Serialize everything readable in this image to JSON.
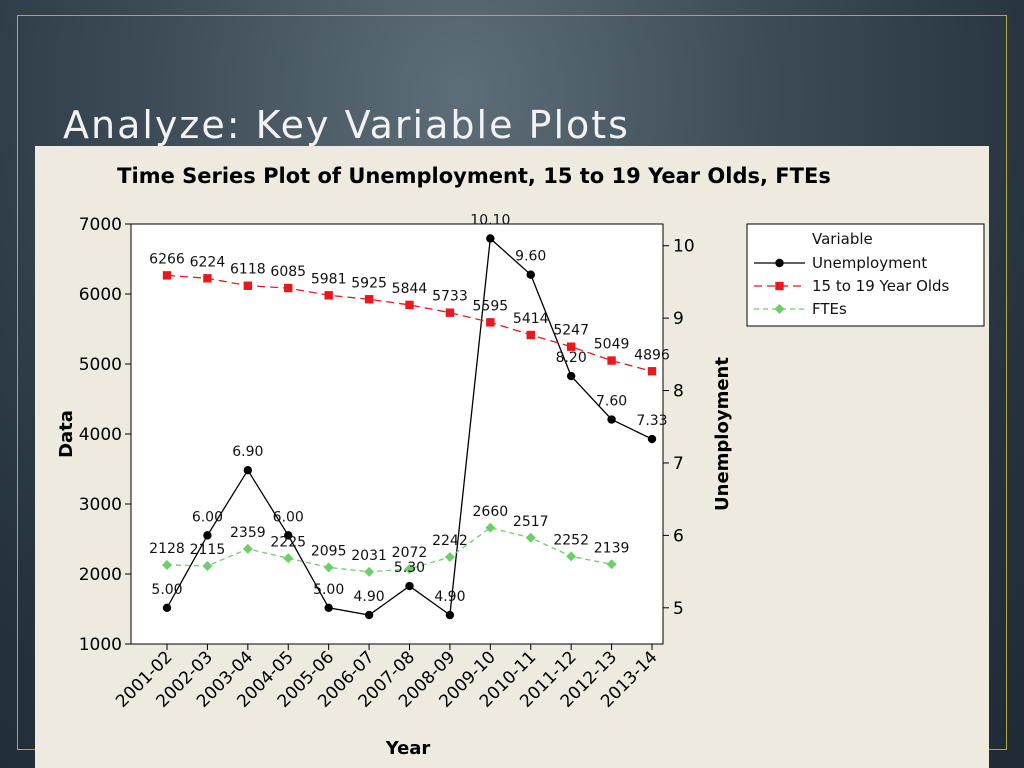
{
  "slide": {
    "title": "Analyze: Key Variable Plots"
  },
  "colors": {
    "unemployment": "#000000",
    "teen": "#e8181c",
    "ftes": "#6ccf6a"
  },
  "chart_data": {
    "type": "line",
    "title": "Time Series Plot of Unemployment, 15 to 19 Year Olds, FTEs",
    "xlabel": "Year",
    "ylabel": "Data",
    "y2label": "Unemployment",
    "categories": [
      "2001-02",
      "2002-03",
      "2003-04",
      "2004-05",
      "2005-06",
      "2006-07",
      "2007-08",
      "2008-09",
      "2009-10",
      "2010-11",
      "2011-12",
      "2012-13",
      "2013-14"
    ],
    "ylim": [
      1000,
      7000
    ],
    "y2lim": [
      4.5,
      10.3
    ],
    "yticks": [
      1000,
      2000,
      3000,
      4000,
      5000,
      6000,
      7000
    ],
    "y2ticks": [
      5,
      6,
      7,
      8,
      9,
      10
    ],
    "legend_title": "Variable",
    "legend_position": "top-right",
    "series": [
      {
        "name": "Unemployment",
        "axis": "right",
        "marker": "circle",
        "dash": "solid",
        "values": [
          5.0,
          6.0,
          6.9,
          6.0,
          5.0,
          4.9,
          5.3,
          4.9,
          10.1,
          9.6,
          8.2,
          7.6,
          7.33
        ],
        "labels": [
          "5.00",
          "6.00",
          "6.90",
          "6.00",
          "5.00",
          "4.90",
          "5.30",
          "4.90",
          "10.10",
          "9.60",
          "8.20",
          "7.60",
          "7.33"
        ]
      },
      {
        "name": "15 to 19 Year Olds",
        "axis": "left",
        "marker": "square",
        "dash": "dashed",
        "values": [
          6266,
          6224,
          6118,
          6085,
          5981,
          5925,
          5844,
          5733,
          5595,
          5414,
          5247,
          5049,
          4896
        ],
        "labels": [
          "6266",
          "6224",
          "6118",
          "6085",
          "5981",
          "5925",
          "5844",
          "5733",
          "5595",
          "5414",
          "5247",
          "5049",
          "4896"
        ]
      },
      {
        "name": "FTEs",
        "axis": "left",
        "marker": "diamond",
        "dash": "dashed",
        "values": [
          2128,
          2115,
          2359,
          2225,
          2095,
          2031,
          2072,
          2242,
          2660,
          2517,
          2252,
          2139,
          null
        ],
        "labels": [
          "2128",
          "2115",
          "2359",
          "2225",
          "2095",
          "2031",
          "2072",
          "2242",
          "2660",
          "2517",
          "2252",
          "2139",
          ""
        ]
      }
    ]
  }
}
